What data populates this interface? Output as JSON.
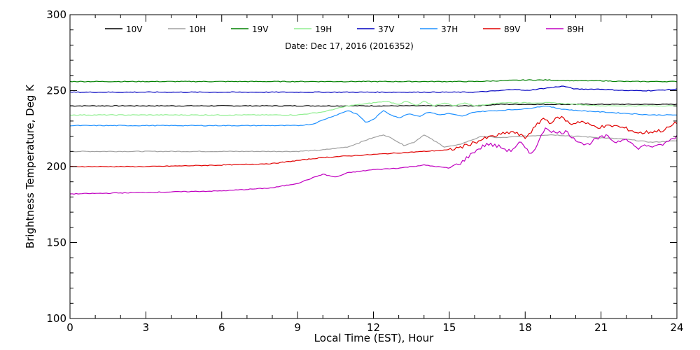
{
  "chart_data": {
    "type": "line",
    "subtitle": "Date: Dec 17, 2016 (2016352)",
    "xlabel": "Local Time (EST), Hour",
    "ylabel": "Brightness Temperature, Deg K",
    "xlim": [
      0,
      24
    ],
    "ylim": [
      100,
      300
    ],
    "xticks": [
      0,
      3,
      6,
      9,
      12,
      15,
      18,
      21,
      24
    ],
    "yticks": [
      100,
      150,
      200,
      250,
      300
    ],
    "grid": false,
    "legend_position": "top",
    "series": [
      {
        "name": "10V",
        "color": "#000000",
        "points": [
          [
            0,
            240
          ],
          [
            3,
            240
          ],
          [
            6,
            240
          ],
          [
            9,
            240
          ],
          [
            11,
            240
          ],
          [
            12,
            240
          ],
          [
            13,
            240
          ],
          [
            14,
            240
          ],
          [
            15,
            240
          ],
          [
            16,
            240
          ],
          [
            17,
            241
          ],
          [
            18,
            241
          ],
          [
            19,
            241
          ],
          [
            20,
            241
          ],
          [
            21,
            241
          ],
          [
            22,
            241
          ],
          [
            23,
            241
          ],
          [
            24,
            241
          ]
        ]
      },
      {
        "name": "10H",
        "color": "#a0a0a0",
        "points": [
          [
            0,
            210
          ],
          [
            3,
            210
          ],
          [
            6,
            210
          ],
          [
            9,
            210
          ],
          [
            10,
            211
          ],
          [
            11,
            213
          ],
          [
            11.8,
            218
          ],
          [
            12.4,
            221
          ],
          [
            12.8,
            218
          ],
          [
            13.2,
            214
          ],
          [
            13.6,
            216
          ],
          [
            14,
            221
          ],
          [
            14.4,
            217
          ],
          [
            14.8,
            213
          ],
          [
            15.3,
            214
          ],
          [
            15.8,
            217
          ],
          [
            16.3,
            220
          ],
          [
            17,
            219
          ],
          [
            18,
            220
          ],
          [
            19,
            221
          ],
          [
            20,
            220
          ],
          [
            21,
            219
          ],
          [
            22,
            218
          ],
          [
            23,
            216
          ],
          [
            24,
            217
          ]
        ]
      },
      {
        "name": "19V",
        "color": "#008000",
        "points": [
          [
            0,
            256
          ],
          [
            3,
            256
          ],
          [
            6,
            256
          ],
          [
            9,
            256
          ],
          [
            12,
            256
          ],
          [
            15,
            256
          ],
          [
            16,
            256
          ],
          [
            17,
            256.5
          ],
          [
            18,
            257
          ],
          [
            19,
            257
          ],
          [
            20,
            256.5
          ],
          [
            21,
            256.5
          ],
          [
            22,
            256
          ],
          [
            23,
            256
          ],
          [
            24,
            256
          ]
        ]
      },
      {
        "name": "19H",
        "color": "#90ee90",
        "points": [
          [
            0,
            234
          ],
          [
            3,
            234
          ],
          [
            6,
            234
          ],
          [
            9,
            234
          ],
          [
            10,
            236
          ],
          [
            11,
            240
          ],
          [
            12,
            242
          ],
          [
            12.5,
            243
          ],
          [
            13,
            241
          ],
          [
            13.3,
            243
          ],
          [
            13.7,
            240
          ],
          [
            14,
            243
          ],
          [
            14.4,
            240
          ],
          [
            14.8,
            242
          ],
          [
            15.2,
            240
          ],
          [
            15.6,
            242
          ],
          [
            16,
            240
          ],
          [
            17,
            242
          ],
          [
            18,
            242
          ],
          [
            19,
            242
          ],
          [
            20,
            241
          ],
          [
            21,
            240
          ],
          [
            22,
            240
          ],
          [
            23,
            240
          ],
          [
            24,
            240
          ]
        ]
      },
      {
        "name": "37V",
        "color": "#0000c0",
        "points": [
          [
            0,
            249
          ],
          [
            3,
            249
          ],
          [
            6,
            249
          ],
          [
            9,
            249
          ],
          [
            12,
            249
          ],
          [
            15,
            249
          ],
          [
            16,
            249
          ],
          [
            17,
            250
          ],
          [
            17.6,
            251
          ],
          [
            18,
            250
          ],
          [
            18.5,
            251
          ],
          [
            19,
            252
          ],
          [
            19.5,
            253
          ],
          [
            20,
            251
          ],
          [
            21,
            251
          ],
          [
            22,
            250
          ],
          [
            23,
            250
          ],
          [
            24,
            251
          ]
        ]
      },
      {
        "name": "37H",
        "color": "#1e90ff",
        "points": [
          [
            0,
            227
          ],
          [
            3,
            227
          ],
          [
            6,
            227
          ],
          [
            9,
            227
          ],
          [
            9.6,
            228
          ],
          [
            10.2,
            232
          ],
          [
            10.7,
            235
          ],
          [
            11,
            237
          ],
          [
            11.4,
            234
          ],
          [
            11.7,
            229
          ],
          [
            12,
            231
          ],
          [
            12.4,
            237
          ],
          [
            12.7,
            234
          ],
          [
            13,
            232
          ],
          [
            13.4,
            235
          ],
          [
            13.8,
            233
          ],
          [
            14.2,
            236
          ],
          [
            14.6,
            234
          ],
          [
            15,
            235
          ],
          [
            15.5,
            233
          ],
          [
            16,
            236
          ],
          [
            17,
            237
          ],
          [
            18,
            238
          ],
          [
            18.8,
            240
          ],
          [
            19.4,
            238
          ],
          [
            20,
            237
          ],
          [
            21,
            236
          ],
          [
            22,
            235
          ],
          [
            23,
            234
          ],
          [
            24,
            234
          ]
        ]
      },
      {
        "name": "89V",
        "color": "#e00000",
        "points": [
          [
            0,
            200
          ],
          [
            3,
            200
          ],
          [
            6,
            201
          ],
          [
            8,
            202
          ],
          [
            9,
            204
          ],
          [
            10,
            206
          ],
          [
            11,
            207
          ],
          [
            12,
            208
          ],
          [
            13,
            209
          ],
          [
            14,
            210
          ],
          [
            15,
            211
          ],
          [
            15.5,
            213
          ],
          [
            16,
            216
          ],
          [
            16.5,
            219
          ],
          [
            17,
            221
          ],
          [
            17.5,
            223
          ],
          [
            18,
            219
          ],
          [
            18.4,
            226
          ],
          [
            18.7,
            232
          ],
          [
            19,
            229
          ],
          [
            19.4,
            233
          ],
          [
            19.8,
            228
          ],
          [
            20.2,
            230
          ],
          [
            20.6,
            227
          ],
          [
            21,
            226
          ],
          [
            21.5,
            227
          ],
          [
            22,
            225
          ],
          [
            22.5,
            222
          ],
          [
            23,
            223
          ],
          [
            23.5,
            224
          ],
          [
            24,
            229
          ]
        ]
      },
      {
        "name": "89H",
        "color": "#c000c0",
        "points": [
          [
            0,
            182
          ],
          [
            3,
            183
          ],
          [
            6,
            184
          ],
          [
            8,
            186
          ],
          [
            9,
            189
          ],
          [
            10,
            195
          ],
          [
            10.5,
            193
          ],
          [
            11,
            196
          ],
          [
            12,
            198
          ],
          [
            13,
            199
          ],
          [
            14,
            201
          ],
          [
            14.5,
            200
          ],
          [
            15,
            199
          ],
          [
            15.5,
            203
          ],
          [
            16,
            210
          ],
          [
            16.5,
            215
          ],
          [
            17,
            213
          ],
          [
            17.4,
            210
          ],
          [
            17.8,
            216
          ],
          [
            18.2,
            208
          ],
          [
            18.5,
            215
          ],
          [
            18.8,
            226
          ],
          [
            19.2,
            222
          ],
          [
            19.6,
            223
          ],
          [
            20,
            218
          ],
          [
            20.4,
            214
          ],
          [
            20.8,
            218
          ],
          [
            21.2,
            220
          ],
          [
            21.6,
            216
          ],
          [
            22,
            219
          ],
          [
            22.4,
            212
          ],
          [
            22.8,
            214
          ],
          [
            23.2,
            213
          ],
          [
            23.6,
            216
          ],
          [
            24,
            220
          ]
        ]
      }
    ]
  }
}
